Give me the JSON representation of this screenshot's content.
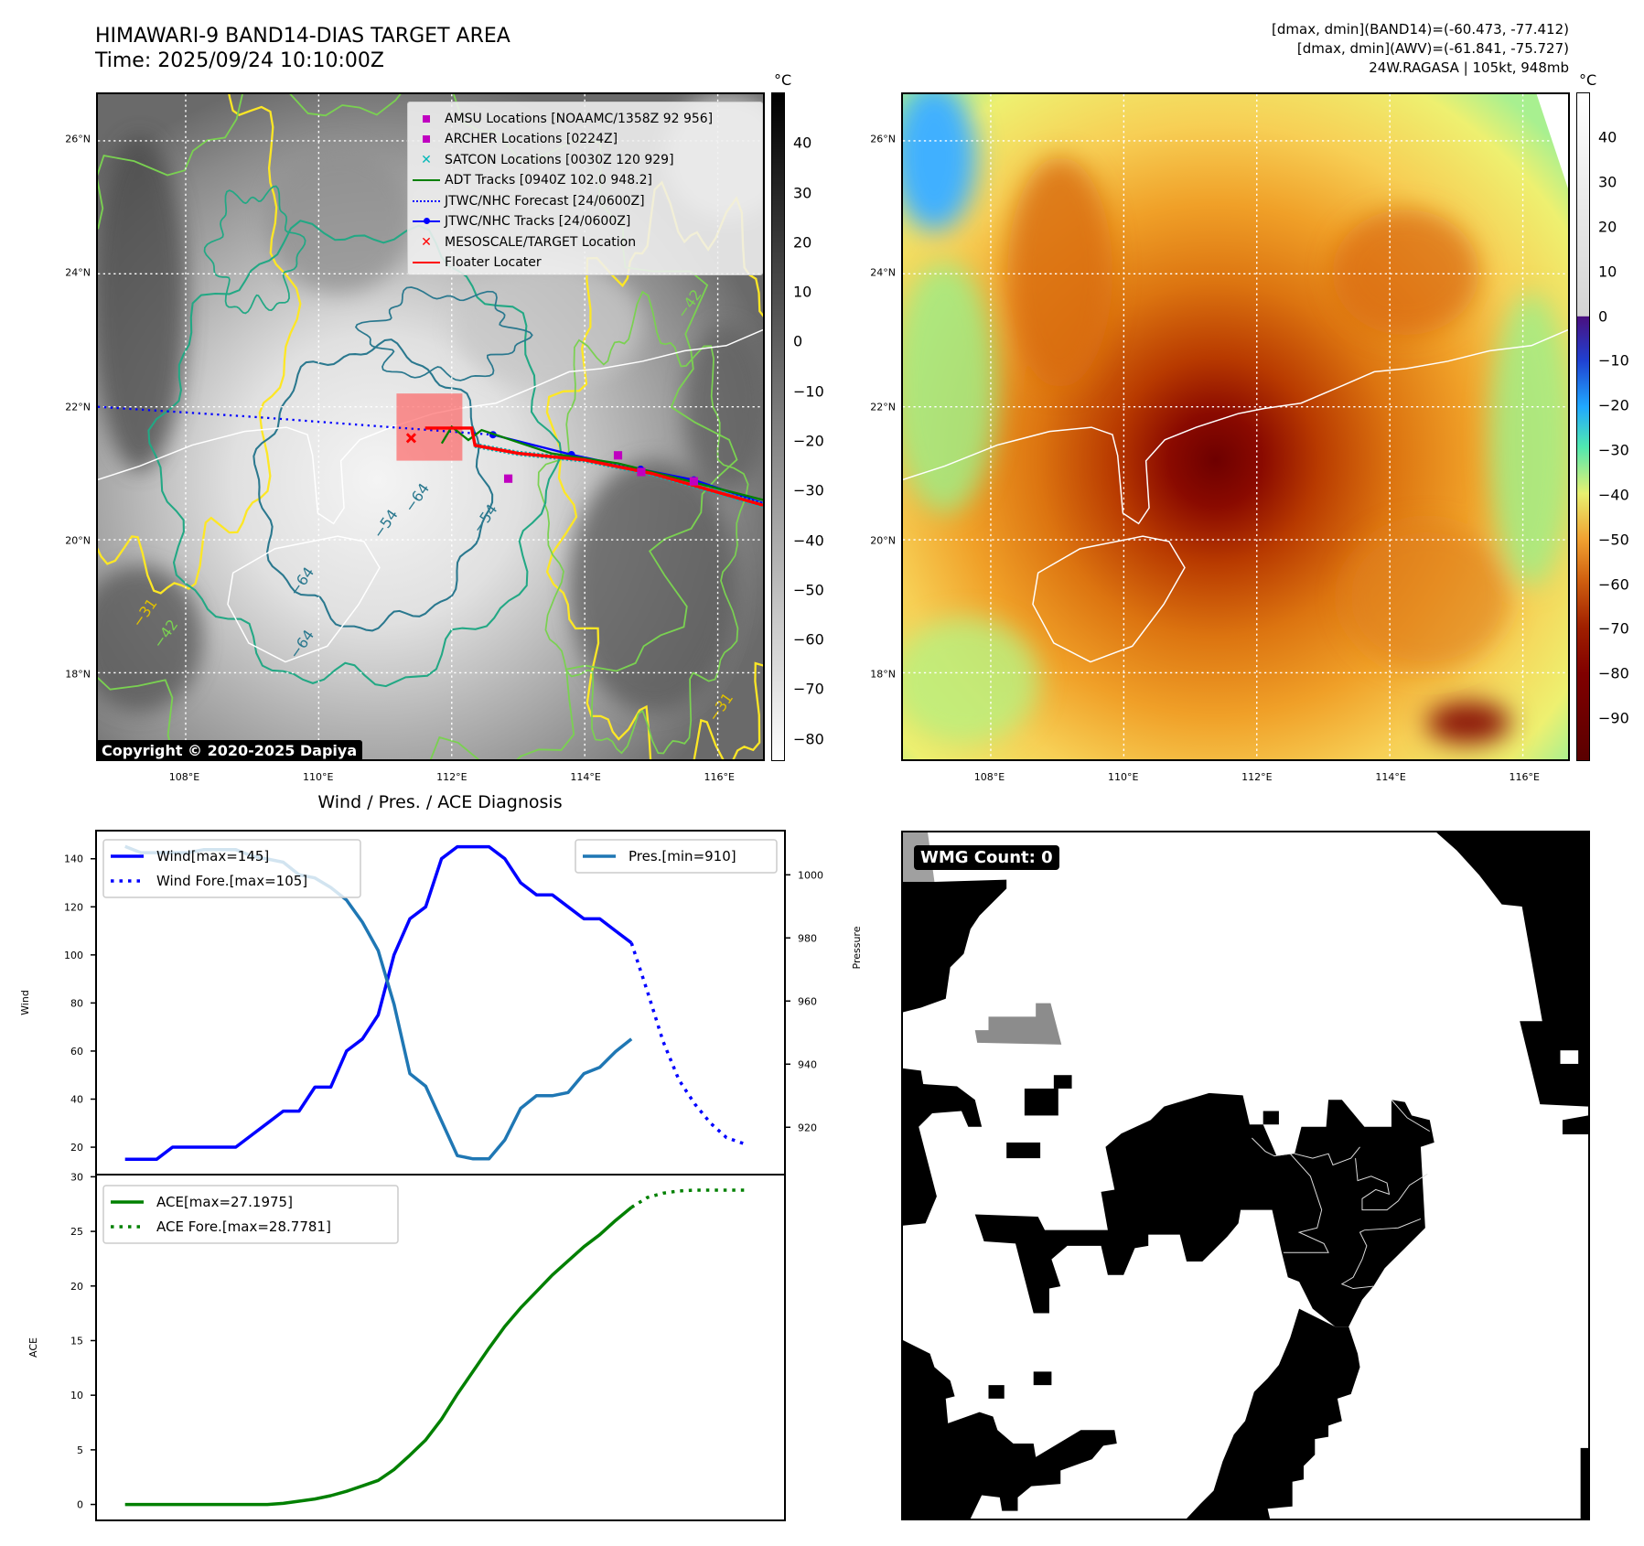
{
  "header": {
    "title": "HIMAWARI-9 BAND14-DIAS TARGET AREA",
    "time": "Time: 2025/09/24 10:10:00Z",
    "stats": [
      "[dmax, dmin](BAND14)=(-60.473, -77.412)",
      "[dmax, dmin](AWV)=(-61.841, -75.727)",
      "24W.RAGASA | 105kt, 948mb"
    ]
  },
  "map": {
    "extent": {
      "lon": [
        106.68,
        116.68
      ],
      "lat": [
        16.7,
        26.7
      ]
    },
    "lat_labels": [
      {
        "v": 26,
        "t": "26°N"
      },
      {
        "v": 24,
        "t": "24°N"
      },
      {
        "v": 22,
        "t": "22°N"
      },
      {
        "v": 20,
        "t": "20°N"
      },
      {
        "v": 18,
        "t": "18°N"
      }
    ],
    "lon_labels": [
      {
        "v": 108,
        "t": "108°E"
      },
      {
        "v": 110,
        "t": "110°E"
      },
      {
        "v": 112,
        "t": "112°E"
      },
      {
        "v": 114,
        "t": "114°E"
      },
      {
        "v": 116,
        "t": "116°E"
      }
    ],
    "unit": "°C",
    "copyright": "Copyright © 2020-2025 Dapiya",
    "contour_labels": [
      "−64",
      "−54",
      "−64",
      "−54",
      "−64",
      "−42",
      "−31",
      "−31",
      "−42"
    ],
    "legend": [
      {
        "label": "AMSU Locations [NOAAMC/1358Z 92 956]",
        "kind": "square",
        "color": "#c000c0"
      },
      {
        "label": "ARCHER Locations [0224Z]",
        "kind": "square",
        "color": "#c000c0"
      },
      {
        "label": "SATCON Locations [0030Z 120 929]",
        "kind": "x",
        "color": "#00b8b8"
      },
      {
        "label": "ADT Tracks [0940Z 102.0 948.2]",
        "kind": "line",
        "color": "#008000"
      },
      {
        "label": "JTWC/NHC Forecast [24/0600Z]",
        "kind": "dotted",
        "color": "#0000ff"
      },
      {
        "label": "JTWC/NHC Tracks [24/0600Z]",
        "kind": "linedot",
        "color": "#0000ff"
      },
      {
        "label": "MESOSCALE/TARGET Location",
        "kind": "x",
        "color": "#ff0000"
      },
      {
        "label": "Floater Locater",
        "kind": "line",
        "color": "#ff0000"
      }
    ],
    "tracks": {
      "jtwc_forecast": [
        [
          106.68,
          22.0
        ],
        [
          109.0,
          21.85
        ],
        [
          111.0,
          21.7
        ],
        [
          112.62,
          21.58
        ]
      ],
      "jtwc_track": [
        [
          112.62,
          21.58
        ],
        [
          113.8,
          21.28
        ],
        [
          114.84,
          21.06
        ],
        [
          115.64,
          20.9
        ],
        [
          116.68,
          20.55
        ]
      ],
      "adt_track": [
        [
          111.85,
          21.45
        ],
        [
          112.0,
          21.7
        ],
        [
          112.25,
          21.5
        ],
        [
          112.45,
          21.65
        ],
        [
          113.5,
          21.3
        ],
        [
          114.5,
          21.15
        ],
        [
          115.5,
          20.9
        ],
        [
          116.68,
          20.6
        ]
      ],
      "floater": [
        [
          111.6,
          21.68
        ],
        [
          112.3,
          21.68
        ],
        [
          112.35,
          21.42
        ],
        [
          113.0,
          21.3
        ],
        [
          114.0,
          21.2
        ],
        [
          115.0,
          21.0
        ],
        [
          116.68,
          20.52
        ]
      ],
      "amsu_archer_points": [
        [
          112.85,
          20.92
        ],
        [
          114.5,
          21.27
        ],
        [
          114.85,
          21.02
        ],
        [
          115.64,
          20.88
        ]
      ],
      "target": [
        111.39,
        21.53
      ],
      "target_box": {
        "lon": [
          111.17,
          112.16
        ],
        "lat": [
          21.19,
          22.2
        ]
      }
    }
  },
  "colorbar_left": {
    "ticks": [
      40,
      30,
      20,
      10,
      0,
      -10,
      -20,
      -30,
      -40,
      -50,
      -60,
      -70,
      -80
    ],
    "range": [
      -84.5,
      50.2
    ]
  },
  "colorbar_right": {
    "ticks": [
      40,
      30,
      20,
      10,
      0,
      -10,
      -20,
      -30,
      -40,
      -50,
      -60,
      -70,
      -80,
      -90
    ],
    "range": [
      -99.6,
      50.1
    ]
  },
  "wmg": {
    "label": "WMG Count: 0"
  },
  "chart_data": [
    {
      "type": "line",
      "title": "Wind / Pres. / ACE Diagnosis",
      "ylabel": "Wind",
      "y2label": "Pressure",
      "xlim": [
        -1.83,
        41.7
      ],
      "ylim": [
        8.6,
        151.7
      ],
      "y2lim": [
        905,
        1014
      ],
      "yticks": [
        20,
        40,
        60,
        80,
        100,
        120,
        140
      ],
      "y2ticks": [
        920,
        940,
        960,
        980,
        1000
      ],
      "series": [
        {
          "name": "Wind[max=145]",
          "axis": "left",
          "color": "#0000ff",
          "style": "solid",
          "x": [
            0,
            1,
            2,
            3,
            4,
            5,
            6,
            7,
            8,
            9,
            10,
            11,
            12,
            13,
            14,
            15,
            16,
            17,
            18,
            19,
            20,
            21,
            22,
            23,
            24,
            25,
            26,
            27,
            28,
            29,
            30,
            31,
            32
          ],
          "values": [
            15,
            15,
            15,
            20,
            20,
            20,
            20,
            20,
            25,
            30,
            35,
            35,
            45,
            45,
            60,
            65,
            75,
            100,
            115,
            120,
            140,
            145,
            145,
            145,
            140,
            130,
            125,
            125,
            120,
            115,
            115,
            110,
            105
          ]
        },
        {
          "name": "Wind Fore.[max=105]",
          "axis": "left",
          "color": "#0000ff",
          "style": "dotted",
          "x": [
            32,
            33,
            34,
            35,
            36,
            37,
            38,
            39.3
          ],
          "values": [
            105,
            85,
            64,
            48,
            38,
            30,
            24,
            21
          ]
        },
        {
          "name": "Pres.[min=910]",
          "axis": "right",
          "color": "#1f77b4",
          "style": "solid",
          "x": [
            0,
            1,
            2,
            3,
            4,
            5,
            6,
            7,
            8,
            9,
            10,
            11,
            12,
            13,
            14,
            15,
            16,
            17,
            18,
            19,
            20,
            21,
            22,
            23,
            24,
            25,
            26,
            27,
            28,
            29,
            30,
            31,
            32
          ],
          "values": [
            1009,
            1007,
            1007,
            1007,
            1007,
            1008,
            1008,
            1008,
            1006,
            1005,
            1004,
            1000,
            999,
            996,
            992,
            985,
            976,
            959,
            937,
            933,
            922,
            911,
            910,
            910,
            916,
            926,
            930,
            930,
            931,
            937,
            939,
            944,
            948
          ]
        }
      ]
    },
    {
      "type": "line",
      "ylabel": "ACE",
      "xlim": [
        -1.83,
        41.7
      ],
      "ylim": [
        -1.46,
        30.2
      ],
      "yticks": [
        0,
        5,
        10,
        15,
        20,
        25,
        30
      ],
      "series": [
        {
          "name": "ACE[max=27.1975]",
          "color": "#008000",
          "style": "solid",
          "x": [
            0,
            1,
            2,
            3,
            4,
            5,
            6,
            7,
            8,
            9,
            10,
            11,
            12,
            13,
            14,
            15,
            16,
            17,
            18,
            19,
            20,
            21,
            22,
            23,
            24,
            25,
            26,
            27,
            28,
            29,
            30,
            31,
            32
          ],
          "values": [
            0,
            0,
            0,
            0,
            0,
            0,
            0,
            0,
            0,
            0,
            0.1,
            0.3,
            0.5,
            0.8,
            1.2,
            1.7,
            2.2,
            3.2,
            4.5,
            5.9,
            7.8,
            10.1,
            12.2,
            14.3,
            16.3,
            18.0,
            19.5,
            21.0,
            22.3,
            23.6,
            24.7,
            26.0,
            27.2
          ]
        },
        {
          "name": "ACE Fore.[max=28.7781]",
          "color": "#008000",
          "style": "dotted",
          "x": [
            32,
            33,
            34,
            35,
            36,
            37,
            38,
            39.3
          ],
          "values": [
            27.2,
            28.1,
            28.5,
            28.7,
            28.78,
            28.78,
            28.78,
            28.78
          ]
        }
      ]
    }
  ]
}
